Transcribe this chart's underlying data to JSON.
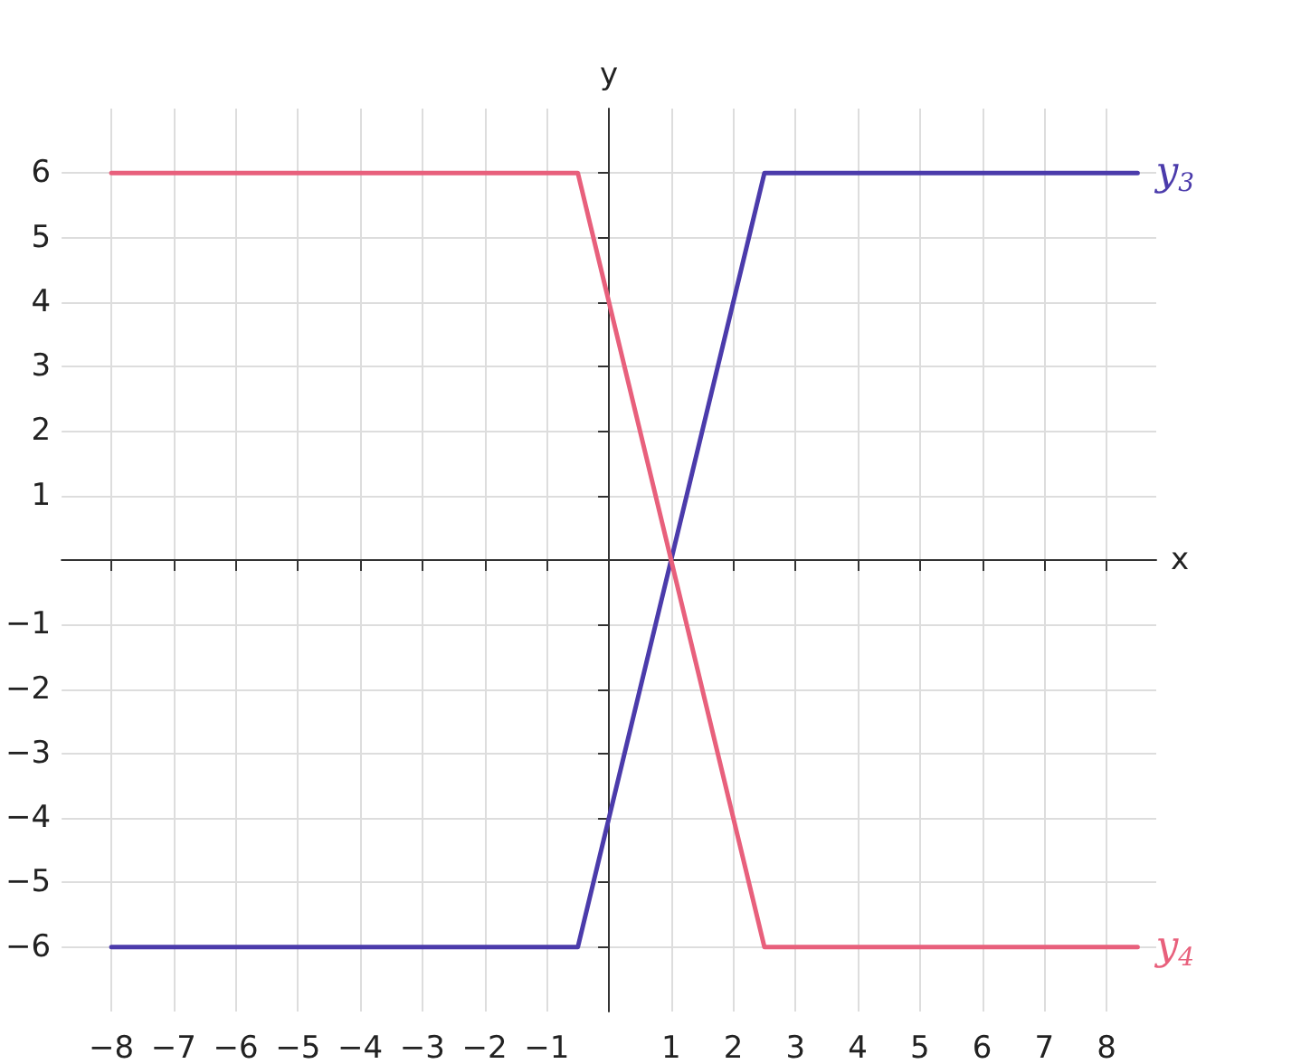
{
  "chart_data": {
    "type": "line",
    "xlabel": "x",
    "ylabel": "y",
    "series": [
      {
        "name": "y$_{3}$",
        "color": "#4b3bab",
        "x": [
          -8,
          -0.5,
          2.5,
          8.5
        ],
        "values": [
          -6,
          -6,
          6,
          6
        ]
      },
      {
        "name": "y$_{4}$",
        "color": "#e8607c",
        "x": [
          -8,
          -0.5,
          2.5,
          8.5
        ],
        "values": [
          6,
          6,
          -6,
          -6
        ]
      }
    ],
    "xlim": [
      -8.8,
      8.8
    ],
    "ylim": [
      -7,
      7
    ],
    "xticks": [
      -8,
      -7,
      -6,
      -5,
      -4,
      -3,
      -2,
      -1,
      1,
      2,
      3,
      4,
      5,
      6,
      7,
      8
    ],
    "yticks": [
      -6,
      -5,
      -4,
      -3,
      -2,
      -1,
      1,
      2,
      3,
      4,
      5,
      6
    ],
    "grid": true,
    "legend": false,
    "marker": "none",
    "line_style": "solid"
  }
}
